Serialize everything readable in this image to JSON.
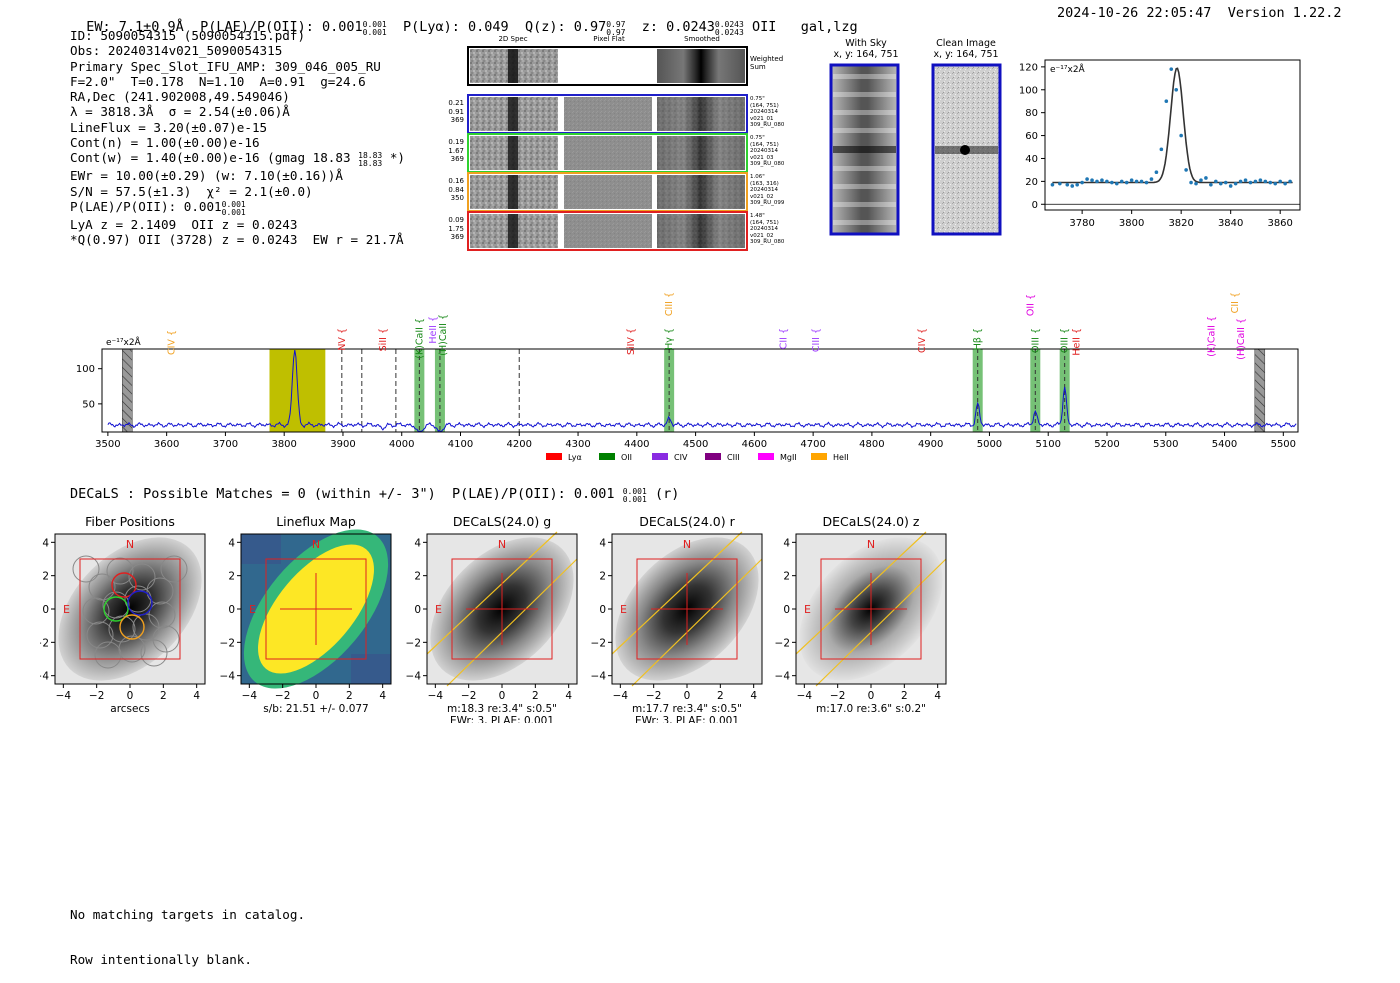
{
  "header": {
    "ew": "EW: 7.1±0.9Å",
    "plae_label": "P(LAE)/P(OII): 0.001",
    "plae_sup": "0.001",
    "plae_sub": "0.001",
    "plya": "P(Lyα): 0.049",
    "qz_label": "Q(z): 0.97",
    "qz_sup": "0.97",
    "qz_sub": "0.97",
    "z_label": "z: 0.0243",
    "z_sup": "0.0243",
    "z_sub": "0.0243",
    "z_line": "OII",
    "flags": "gal,lzg",
    "timestamp": "2024-10-26 22:05:47",
    "version": "Version 1.22.2"
  },
  "info": {
    "id": "ID: 5090054315 (5090054315.pdf)",
    "obs": "Obs: 20240314v021_5090054315",
    "primary": "Primary Spec_Slot_IFU_AMP: 309_046_005_RU",
    "params": "F=2.0\"  T=0.178  N=1.10  A=0.91  g=24.6",
    "radec": "RA,Dec (241.902008,49.549046)",
    "lambda": "λ = 3818.3Å  σ = 2.54(±0.06)Å",
    "lineflux": "LineFlux = 3.20(±0.07)e-15",
    "contn": "Cont(n) = 1.00(±0.00)e-16",
    "contw": "Cont(w) = 1.40(±0.00)e-16 (gmag 18.83",
    "contw_sup": "18.83",
    "contw_sub": "18.83",
    "contw_end": " *)",
    "ewr": "EWr = 10.00(±0.29) (w: 7.10(±0.16))Å",
    "sn": "S/N = 57.5(±1.3)  χ² = 2.1(±0.0)",
    "plae": "P(LAE)/P(OII): 0.001",
    "plae_sup": "0.001",
    "plae_sub": "0.001",
    "lya_z": "LyA z = 2.1409  OII z = 0.0243",
    "q_line": "*Q(0.97) OII (3728) z = 0.0243  EW r = 21.7Å"
  },
  "strips": {
    "col_titles": [
      "2D Spec",
      "Pixel Flat",
      "Smoothed"
    ],
    "weighted_label": "Weighted\nSum",
    "rows": [
      {
        "nums": [
          "0.21",
          "0.91",
          "369"
        ],
        "meta": "0.75\"\n(164, 751)\n20240314\nv021_01\n309_RU_080",
        "color": "#1f1fc8"
      },
      {
        "nums": [
          "0.19",
          "1.67",
          "369"
        ],
        "meta": "0.75\"\n(164, 751)\n20240314\nv021_03\n309_RU_080",
        "color": "#2fd12f"
      },
      {
        "nums": [
          "0.16",
          "0.84",
          "350"
        ],
        "meta": "1.06\"\n(163, 316)\n20240314\nv021_02\n309_RU_099",
        "color": "#f0a020"
      },
      {
        "nums": [
          "0.09",
          "1.75",
          "369"
        ],
        "meta": "1.48\"\n(164, 751)\n20240314\nv021_02\n309_RU_080",
        "color": "#e02020"
      }
    ]
  },
  "cutouts": {
    "with_sky_title": "With Sky",
    "with_sky_xy": "x, y: 164, 751",
    "clean_title": "Clean Image",
    "clean_xy": "x, y: 164, 751"
  },
  "line_fit": {
    "ylabel": "e⁻¹⁷x2Å",
    "xticks": [
      "3780",
      "3800",
      "3820",
      "3840",
      "3860"
    ],
    "yticks": [
      "0",
      "20",
      "40",
      "60",
      "80",
      "100",
      "120"
    ]
  },
  "spectrum": {
    "ylabel": "e⁻¹⁷x2Å",
    "xticks": [
      "3500",
      "3600",
      "3700",
      "3800",
      "3900",
      "4000",
      "4100",
      "4200",
      "4300",
      "4400",
      "4500",
      "4600",
      "4700",
      "4800",
      "4900",
      "5000",
      "5100",
      "5200",
      "5300",
      "5400",
      "5500"
    ],
    "yticks": [
      "50",
      "100"
    ],
    "line_labels": [
      {
        "text": "CIV",
        "color": "#f0a020"
      },
      {
        "text": "NV",
        "color": "#e02020"
      },
      {
        "text": "SiII",
        "color": "#e02020"
      },
      {
        "text": "(K)CaII",
        "color": "#1a8a1a"
      },
      {
        "text": "HeII",
        "color": "#a040ff"
      },
      {
        "text": "(H)CaII",
        "color": "#1a8a1a"
      },
      {
        "text": "SiIV",
        "color": "#e02020"
      },
      {
        "text": "CIII",
        "color": "#f0a020"
      },
      {
        "text": "Hγ",
        "color": "#1a8a1a"
      },
      {
        "text": "CII",
        "color": "#a040ff"
      },
      {
        "text": "CIII",
        "color": "#a040ff"
      },
      {
        "text": "CIV",
        "color": "#e02020"
      },
      {
        "text": "Hβ",
        "color": "#1a8a1a"
      },
      {
        "text": "OII",
        "color": "#e000e0"
      },
      {
        "text": "OIII",
        "color": "#1a8a1a"
      },
      {
        "text": "OIII",
        "color": "#1a8a1a"
      },
      {
        "text": "HeII",
        "color": "#e02020"
      },
      {
        "text": "(K)CaII",
        "color": "#e000e0"
      },
      {
        "text": "CII",
        "color": "#f0a020"
      },
      {
        "text": "(H)CaII",
        "color": "#e000e0"
      }
    ],
    "legend": [
      {
        "name": "Lyα",
        "color": "#ff0000"
      },
      {
        "name": "OII",
        "color": "#008000"
      },
      {
        "name": "CIV",
        "color": "#8a2be2"
      },
      {
        "name": "CIII",
        "color": "#800080"
      },
      {
        "name": "MgII",
        "color": "#ff00ff"
      },
      {
        "name": "HeII",
        "color": "#ffa500"
      }
    ]
  },
  "decals": {
    "summary": "DECaLS : Possible Matches = 0 (within +/- 3\")  P(LAE)/P(OII): 0.001",
    "summary_sup": "0.001",
    "summary_sub": "0.001",
    "summary_band": "(r)",
    "panels": [
      {
        "title": "Fiber Positions",
        "cap1": "arcsecs",
        "cap2": ""
      },
      {
        "title": "Lineflux Map",
        "cap1": "s/b: 21.51 +/- 0.077",
        "cap2": ""
      },
      {
        "title": "DECaLS(24.0) g",
        "cap1": "m:18.3  re:3.4\"  s:0.5\"",
        "cap2": "EWr: 3, PLAE: 0.001"
      },
      {
        "title": "DECaLS(24.0) r",
        "cap1": "m:17.7  re:3.4\"  s:0.5\"",
        "cap2": "EWr: 3, PLAE: 0.001"
      },
      {
        "title": "DECaLS(24.0) z",
        "cap1": "m:17.0  re:3.6\"  s:0.2\"",
        "cap2": ""
      }
    ],
    "ticks": [
      "−4",
      "−2",
      "0",
      "2",
      "4"
    ],
    "north": "N",
    "east": "E"
  },
  "footer": {
    "line1": "No matching targets in catalog.",
    "line2": "Row intentionally blank."
  },
  "chart_data": [
    {
      "type": "scatter",
      "title": "Line fit",
      "xlabel": "",
      "ylabel": "e-17 x2Å",
      "xlim": [
        3765,
        3868
      ],
      "ylim": [
        -5,
        126
      ],
      "x": [
        3768,
        3771,
        3774,
        3776,
        3778,
        3780,
        3782,
        3784,
        3786,
        3788,
        3790,
        3792,
        3794,
        3796,
        3798,
        3800,
        3802,
        3804,
        3806,
        3808,
        3810,
        3812,
        3814,
        3816,
        3818,
        3820,
        3822,
        3824,
        3826,
        3828,
        3830,
        3832,
        3834,
        3836,
        3838,
        3840,
        3842,
        3844,
        3846,
        3848,
        3850,
        3852,
        3854,
        3856,
        3858,
        3860,
        3862,
        3864
      ],
      "values": [
        17,
        18,
        17,
        16,
        17,
        19,
        22,
        21,
        20,
        21,
        20,
        19,
        18,
        20,
        19,
        21,
        20,
        20,
        19,
        22,
        28,
        48,
        90,
        118,
        100,
        60,
        30,
        19,
        18,
        21,
        23,
        17,
        20,
        18,
        19,
        16,
        18,
        20,
        21,
        19,
        20,
        21,
        20,
        19,
        18,
        20,
        18,
        20
      ],
      "fit": {
        "center": 3818.3,
        "sigma": 2.54,
        "continuum": 19,
        "peak": 119
      }
    },
    {
      "type": "line",
      "title": "Full spectrum",
      "xlim": [
        3490,
        5525
      ],
      "ylim": [
        10,
        128
      ],
      "continuum": 20,
      "emission": [
        {
          "x": 3818,
          "amp": 108,
          "width": 4
        },
        {
          "x": 4455,
          "amp": 10,
          "width": 3
        },
        {
          "x": 4980,
          "amp": 30,
          "width": 3
        },
        {
          "x": 5078,
          "amp": 20,
          "width": 3
        },
        {
          "x": 5128,
          "amp": 55,
          "width": 3
        }
      ],
      "absorption": [
        {
          "x": 3968,
          "amp": 5,
          "width": 4
        },
        {
          "x": 4030,
          "amp": 12,
          "width": 5
        },
        {
          "x": 4065,
          "amp": 10,
          "width": 5
        }
      ],
      "highlight_band": [
        3775,
        3870
      ],
      "shaded_lines": [
        4030,
        4065,
        4455,
        4980,
        5078,
        5128
      ],
      "dashed_lines": [
        3898,
        3932,
        3990,
        4200
      ],
      "hatched": [
        3533,
        5460
      ]
    }
  ]
}
